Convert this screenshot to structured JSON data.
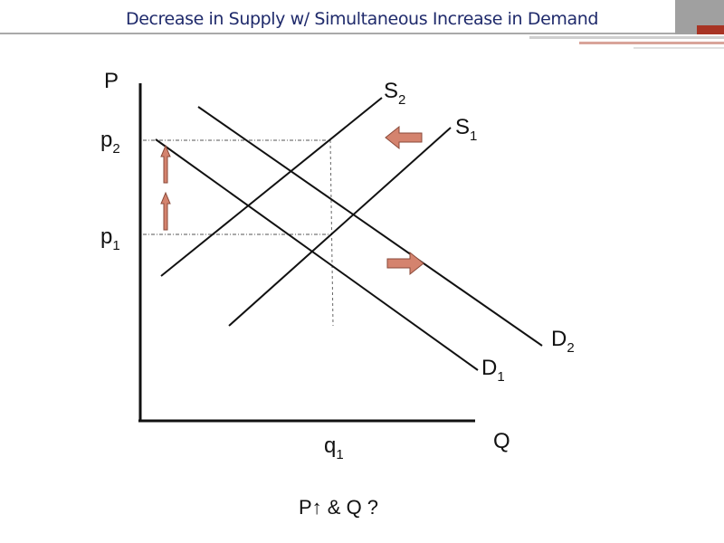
{
  "title": "Decrease in Supply w/ Simultaneous Increase in Demand",
  "axes": {
    "y_label": "P",
    "x_label": "Q"
  },
  "curves": {
    "s1": {
      "base": "S",
      "sub": "1"
    },
    "s2": {
      "base": "S",
      "sub": "2"
    },
    "d1": {
      "base": "D",
      "sub": "1"
    },
    "d2": {
      "base": "D",
      "sub": "2"
    }
  },
  "levels": {
    "p1": {
      "base": "p",
      "sub": "1"
    },
    "p2": {
      "base": "p",
      "sub": "2"
    },
    "q1": {
      "base": "q",
      "sub": "1"
    }
  },
  "caption": "P↑ & Q ?",
  "colors": {
    "title": "#1f2a6b",
    "arrow_fill": "#d4836e",
    "arrow_stroke": "#8a4a3a",
    "line": "#111111"
  }
}
